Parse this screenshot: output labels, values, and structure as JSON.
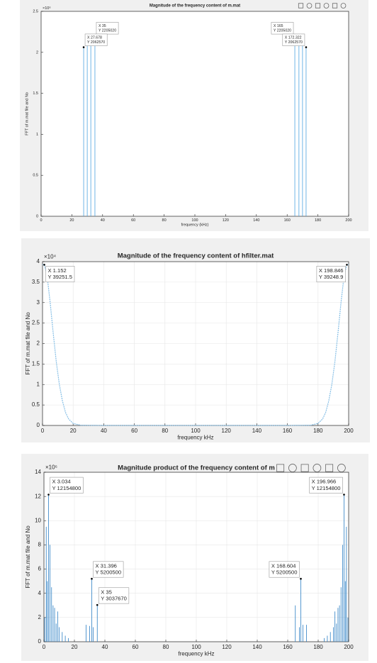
{
  "chart_data": [
    {
      "type": "stem",
      "title": "Magnitude of the frequency content of m.mat",
      "xlabel": "frequency (kHz)",
      "ylabel": "FFT of m.mat file and No",
      "y_exponent_label": "×10⁶",
      "color": "#4da3e0",
      "grid": false,
      "xlim": [
        0,
        200
      ],
      "xticks": [
        0,
        20,
        40,
        60,
        80,
        100,
        120,
        140,
        160,
        180,
        200
      ],
      "ylim": [
        0,
        2500000
      ],
      "yticks": [
        0,
        {
          "value": 500000,
          "label": "0.5"
        },
        {
          "value": 1000000,
          "label": "1"
        },
        {
          "value": 1500000,
          "label": "1.5"
        },
        {
          "value": 2000000,
          "label": "2"
        },
        {
          "value": 2500000,
          "label": "2.5"
        }
      ],
      "x": [
        27.678,
        30,
        32.322,
        35,
        165,
        167.678,
        170,
        172.322
      ],
      "values": [
        2062570,
        2100000,
        2100000,
        2205020,
        2205020,
        2100000,
        2100000,
        2062570
      ],
      "datatips": [
        {
          "x": 35,
          "y": 2205020,
          "text": [
            "X 35",
            "Y 2205020"
          ]
        },
        {
          "x": 27.678,
          "y": 2062570,
          "text": [
            "X 27.678",
            "Y 2062570"
          ]
        },
        {
          "x": 165,
          "y": 2205020,
          "text": [
            "X 165",
            "Y 2205020"
          ]
        },
        {
          "x": 172.322,
          "y": 2062570,
          "text": [
            "X 172.322",
            "Y 2062570"
          ]
        }
      ]
    },
    {
      "type": "line",
      "title": "Magnitude of the frequency content of hfilter.mat",
      "xlabel": "frequency kHz",
      "ylabel": "FFT of m.mat file and No",
      "y_exponent_label": "×10⁴",
      "color": "#86bfe6",
      "grid": true,
      "xlim": [
        0,
        200
      ],
      "xticks": [
        0,
        20,
        40,
        60,
        80,
        100,
        120,
        140,
        160,
        180,
        200
      ],
      "ylim": [
        0,
        40000
      ],
      "yticks": [
        0,
        {
          "value": 5000,
          "label": "0.5"
        },
        {
          "value": 10000,
          "label": "1"
        },
        {
          "value": 15000,
          "label": "1.5"
        },
        {
          "value": 20000,
          "label": "2"
        },
        {
          "value": 25000,
          "label": "2.5"
        },
        {
          "value": 30000,
          "label": "3"
        },
        {
          "value": 35000,
          "label": "3.5"
        },
        {
          "value": 40000,
          "label": "4"
        }
      ],
      "x": [
        0,
        1.152,
        3,
        5,
        7,
        9,
        11,
        13,
        15,
        17,
        20,
        25,
        40,
        60,
        80,
        100,
        120,
        140,
        160,
        175,
        180,
        183,
        185,
        187,
        189,
        191,
        193,
        195,
        197,
        198.846,
        200
      ],
      "values": [
        39300,
        39251.5,
        36500,
        30000,
        22500,
        15500,
        10000,
        6000,
        3200,
        1600,
        500,
        50,
        0,
        0,
        0,
        0,
        0,
        0,
        0,
        50,
        500,
        1600,
        3200,
        6000,
        10000,
        15500,
        22500,
        30000,
        36500,
        39248.9,
        39300
      ],
      "datatips": [
        {
          "x": 1.152,
          "y": 39251.5,
          "text": [
            "X 1.152",
            "Y 39251.5"
          ]
        },
        {
          "x": 198.846,
          "y": 39248.9,
          "text": [
            "X 198.846",
            "Y 39248.9"
          ]
        }
      ]
    },
    {
      "type": "stem",
      "title": "Magnitude product of the frequency content of m",
      "xlabel": "frequency kHz",
      "ylabel": "FFT of m.mat file and No",
      "y_exponent_label": "×10⁶",
      "color": "#2b7fc4",
      "grid": true,
      "xlim": [
        0,
        200
      ],
      "xticks": [
        0,
        20,
        40,
        60,
        80,
        100,
        120,
        140,
        160,
        180,
        200
      ],
      "ylim": [
        0,
        14000000
      ],
      "yticks": [
        0,
        {
          "value": 2000000,
          "label": "2"
        },
        {
          "value": 4000000,
          "label": "4"
        },
        {
          "value": 6000000,
          "label": "6"
        },
        {
          "value": 8000000,
          "label": "8"
        },
        {
          "value": 10000000,
          "label": "10"
        },
        {
          "value": 12000000,
          "label": "12"
        },
        {
          "value": 14000000,
          "label": "14"
        }
      ],
      "x": [
        0.5,
        1.5,
        2.2,
        3.034,
        4,
        5,
        6,
        7,
        8,
        9,
        10,
        12,
        14,
        16,
        27.678,
        30,
        31.396,
        32.322,
        35,
        165,
        167.678,
        168.604,
        170,
        172.322,
        184,
        186,
        188,
        190,
        191,
        192,
        193,
        194,
        195,
        196,
        196.966,
        197.8,
        198.5,
        199.5
      ],
      "values": [
        2000000,
        9500000,
        5000000,
        12154800,
        8000000,
        4500000,
        3000000,
        2800000,
        1500000,
        2500000,
        1200000,
        800000,
        500000,
        300000,
        1400000,
        1300000,
        5200500,
        1200000,
        3037670,
        3000000,
        1200000,
        5200500,
        1400000,
        1400000,
        300000,
        500000,
        800000,
        1200000,
        2500000,
        1500000,
        2800000,
        3000000,
        4500000,
        8000000,
        12154800,
        5000000,
        9500000,
        2000000
      ],
      "datatips": [
        {
          "x": 3.034,
          "y": 12154800,
          "text": [
            "X 3.034",
            "Y 12154800"
          ]
        },
        {
          "x": 196.966,
          "y": 12154800,
          "text": [
            "X 196.966",
            "Y 12154800"
          ]
        },
        {
          "x": 31.396,
          "y": 5200500,
          "text": [
            "X 31.396",
            "Y 5200500"
          ]
        },
        {
          "x": 168.604,
          "y": 5200500,
          "text": [
            "X 168.604",
            "Y 5200500"
          ]
        },
        {
          "x": 35,
          "y": 3037670,
          "text": [
            "X 35",
            "Y 3037670"
          ]
        }
      ]
    }
  ]
}
